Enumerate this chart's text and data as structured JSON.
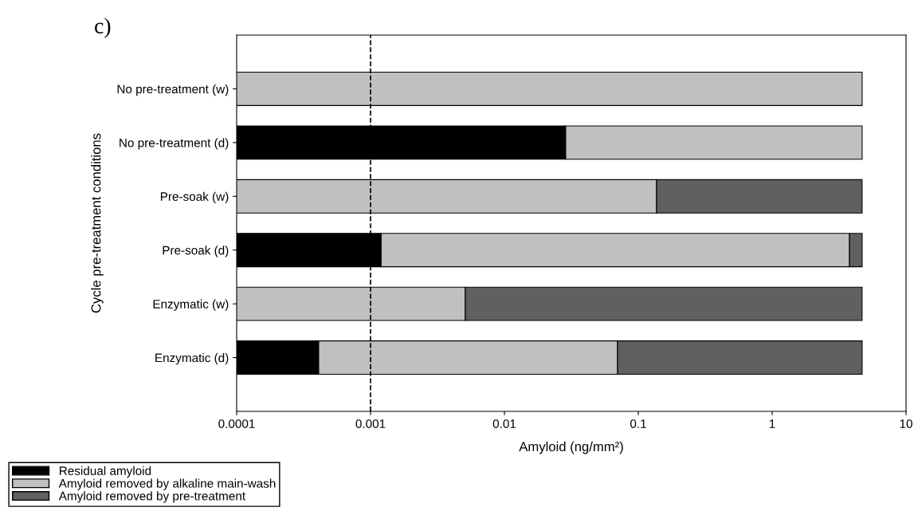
{
  "chart_data": {
    "type": "bar",
    "orientation": "horizontal",
    "stacked": true,
    "log": "x",
    "title": "c)",
    "xlabel": "Amyloid (ng/mm²)",
    "ylabel": "Cycle pre-treatment conditions",
    "categories": [
      "No pre-treatment (w)",
      "No pre-treatment (d)",
      "Pre-soak (w)",
      "Pre-soak (d)",
      "Enzymatic (w)",
      "Enzymatic (d)"
    ],
    "series": [
      {
        "name": "Residual amyloid",
        "color": "#000000",
        "values": [
          null,
          0.0287,
          null,
          0.0012,
          null,
          0.00041
        ]
      },
      {
        "name": "Amyloid removed by alkaline main-wash",
        "color": "#c0c0c0",
        "values": [
          4.7,
          4.67,
          0.137,
          3.78,
          0.0051,
          0.0696
        ]
      },
      {
        "name": "Amyloid removed by pre-treatment",
        "color": "#606060",
        "values": [
          null,
          null,
          4.56,
          0.92,
          4.69,
          4.63
        ]
      }
    ],
    "xlim": [
      0.0001,
      10
    ],
    "xticks": [
      0.0001,
      0.001,
      0.01,
      0.1,
      1,
      10
    ],
    "ref_lines": [
      {
        "axis": "x",
        "value": 0.001,
        "line_style": "dashed",
        "color": "#000000"
      }
    ],
    "legend": "bottom left",
    "grid": false
  }
}
